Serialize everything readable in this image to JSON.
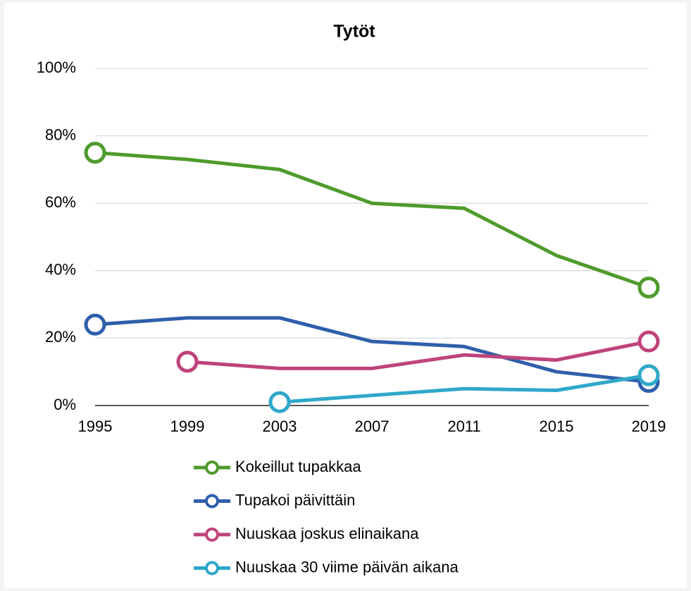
{
  "chart_data": {
    "type": "line",
    "title": "Tytöt",
    "categories": [
      "1995",
      "1999",
      "2003",
      "2007",
      "2011",
      "2015",
      "2019"
    ],
    "ylim": [
      0,
      100
    ],
    "yticks": [
      {
        "value": 0,
        "label": "0%"
      },
      {
        "value": 20,
        "label": "20%"
      },
      {
        "value": 40,
        "label": "40%"
      },
      {
        "value": 60,
        "label": "60%"
      },
      {
        "value": 80,
        "label": "80%"
      },
      {
        "value": 100,
        "label": "100%"
      }
    ],
    "grid": true,
    "legend": "bottom",
    "series": [
      {
        "name": "Kokeillut tupakkaa",
        "color": "#4e9b2c",
        "values": [
          75,
          73,
          70,
          60,
          58.5,
          44.5,
          35
        ]
      },
      {
        "name": "Tupakoi päivittäin",
        "color": "#2f5fab",
        "values": [
          24,
          26,
          26,
          19,
          17.5,
          10,
          7
        ]
      },
      {
        "name": "Nuuskaa joskus elinaikana",
        "color": "#c0437b",
        "values": [
          null,
          13,
          11,
          11,
          15,
          13.5,
          19
        ]
      },
      {
        "name": "Nuuskaa 30 viime päivän aikana",
        "color": "#2fa8ca",
        "values": [
          null,
          null,
          1,
          3,
          5,
          4.5,
          9
        ]
      }
    ]
  }
}
